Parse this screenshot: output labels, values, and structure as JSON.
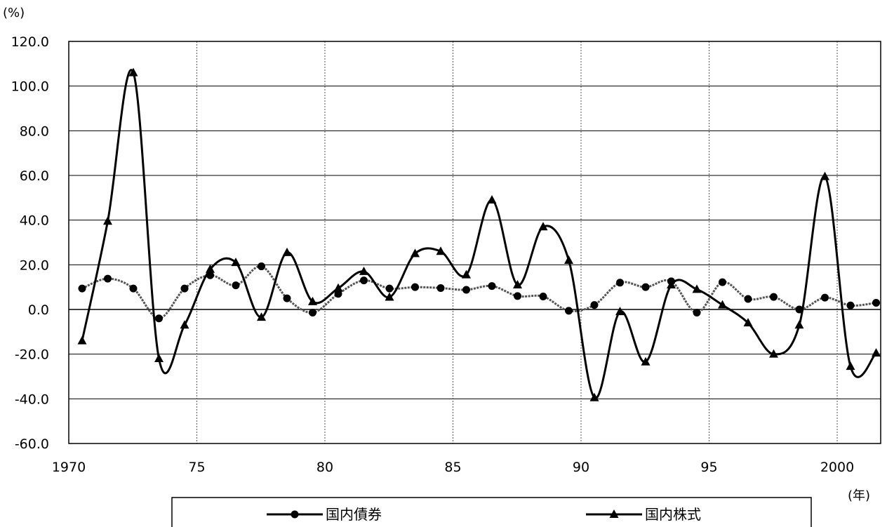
{
  "chart_data": {
    "type": "line",
    "ylabel": "(%)",
    "xlabel": "(年)",
    "ylim": [
      -60,
      120
    ],
    "y_ticks": [
      "120.0",
      "100.0",
      "80.0",
      "60.0",
      "40.0",
      "20.0",
      "0.0",
      "-20.0",
      "-40.0",
      "-60.0"
    ],
    "x_tick_labels": [
      "1970",
      "75",
      "80",
      "85",
      "90",
      "95",
      "2000"
    ],
    "x": [
      1970,
      1971,
      1972,
      1973,
      1974,
      1975,
      1976,
      1977,
      1978,
      1979,
      1980,
      1981,
      1982,
      1983,
      1984,
      1985,
      1986,
      1987,
      1988,
      1989,
      1990,
      1991,
      1992,
      1993,
      1994,
      1995,
      1996,
      1997,
      1998,
      1999,
      2000,
      2001
    ],
    "grid": true,
    "legend_position": "bottom",
    "series": [
      {
        "name": "国内債券",
        "marker": "circle",
        "values": [
          9.4,
          13.8,
          9.4,
          -4.0,
          9.4,
          15.3,
          10.8,
          19.3,
          5.0,
          -1.4,
          7.0,
          13.0,
          9.4,
          10.0,
          9.6,
          8.8,
          10.5,
          6.0,
          5.8,
          -0.6,
          2.0,
          12.0,
          10.0,
          12.6,
          -1.4,
          12.2,
          4.7,
          5.6,
          0.0,
          5.3,
          1.8,
          3.0
        ]
      },
      {
        "name": "国内株式",
        "marker": "triangle",
        "values": [
          -14.0,
          39.5,
          106.0,
          -22.0,
          -7.0,
          18.0,
          21.0,
          -3.5,
          25.5,
          3.5,
          9.5,
          17.0,
          5.5,
          25.0,
          26.0,
          15.5,
          49.0,
          11.0,
          37.0,
          22.0,
          -39.5,
          -1.0,
          -23.5,
          11.0,
          9.0,
          2.0,
          -6.0,
          -20.0,
          -7.0,
          59.5,
          -25.5,
          -19.5
        ]
      }
    ]
  }
}
